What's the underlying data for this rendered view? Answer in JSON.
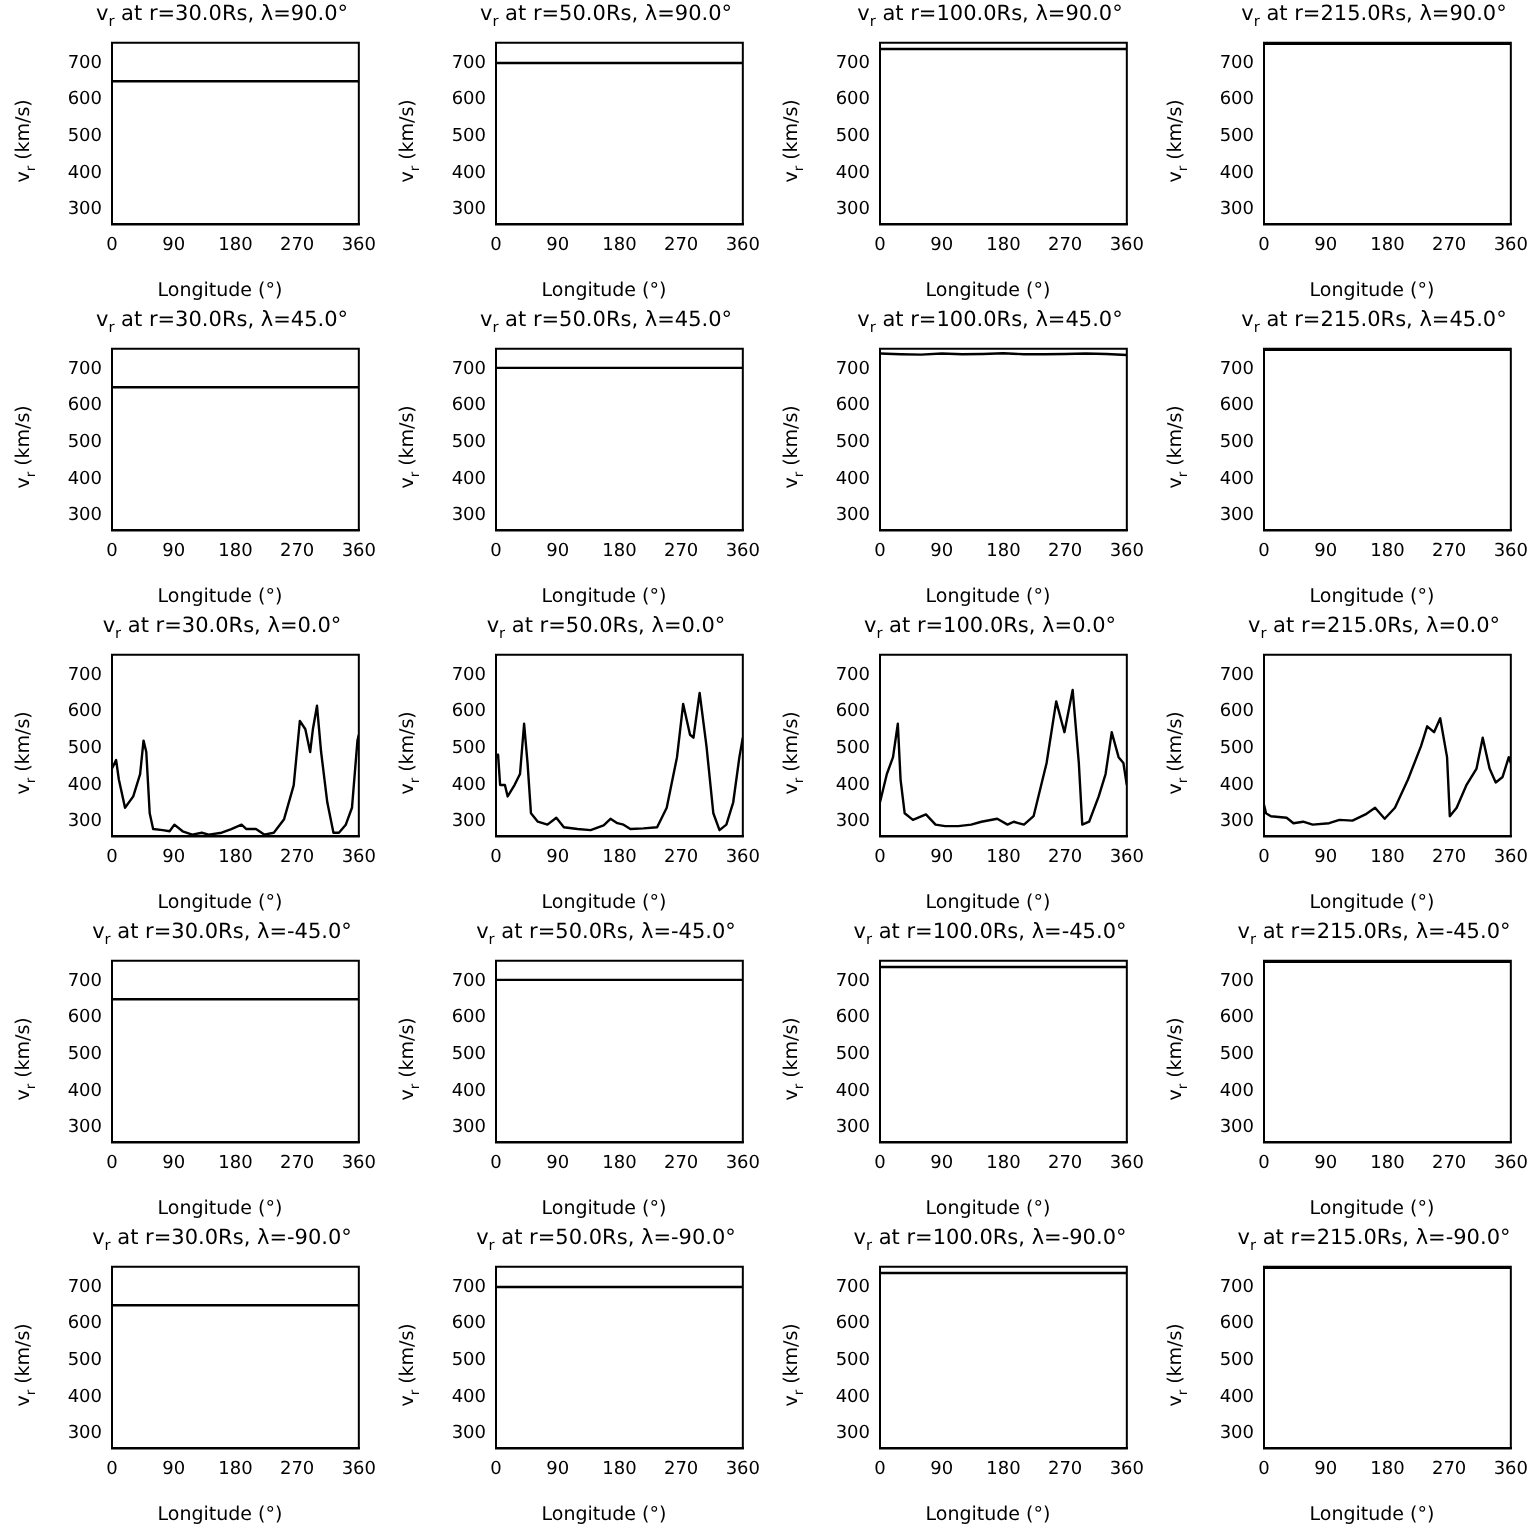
{
  "chart_data": [
    {
      "type": "line",
      "title": "v$_{r}$ at r=30.0Rs, λ=90.0°",
      "xlabel": "Longitude (°)",
      "ylabel": "v$_{r}$ (km/s)",
      "x": [
        0,
        360
      ],
      "values": [
        650,
        650
      ],
      "color": "#000000",
      "xlim": [
        0,
        360
      ],
      "ylim": [
        260,
        755
      ],
      "xticks": [
        0,
        90,
        180,
        270,
        360
      ],
      "yticks": [
        300,
        400,
        500,
        600,
        700
      ]
    },
    {
      "type": "line",
      "title": "v$_{r}$ at r=50.0Rs, λ=90.0°",
      "xlabel": "Longitude (°)",
      "ylabel": "v$_{r}$ (km/s)",
      "x": [
        0,
        360
      ],
      "values": [
        700,
        700
      ],
      "color": "#000000",
      "xlim": [
        0,
        360
      ],
      "ylim": [
        260,
        755
      ],
      "xticks": [
        0,
        90,
        180,
        270,
        360
      ],
      "yticks": [
        300,
        400,
        500,
        600,
        700
      ]
    },
    {
      "type": "line",
      "title": "v$_{r}$ at r=100.0Rs, λ=90.0°",
      "xlabel": "Longitude (°)",
      "ylabel": "v$_{r}$ (km/s)",
      "x": [
        0,
        360
      ],
      "values": [
        738,
        738
      ],
      "color": "#000000",
      "xlim": [
        0,
        360
      ],
      "ylim": [
        260,
        755
      ],
      "xticks": [
        0,
        90,
        180,
        270,
        360
      ],
      "yticks": [
        300,
        400,
        500,
        600,
        700
      ]
    },
    {
      "type": "line",
      "title": "v$_{r}$ at r=215.0Rs, λ=90.0°",
      "xlabel": "Longitude (°)",
      "ylabel": "v$_{r}$ (km/s)",
      "x": [
        0,
        360
      ],
      "values": [
        752,
        752
      ],
      "color": "#000000",
      "xlim": [
        0,
        360
      ],
      "ylim": [
        260,
        755
      ],
      "xticks": [
        0,
        90,
        180,
        270,
        360
      ],
      "yticks": [
        300,
        400,
        500,
        600,
        700
      ]
    },
    {
      "type": "line",
      "title": "v$_{r}$ at r=30.0Rs, λ=45.0°",
      "xlabel": "Longitude (°)",
      "ylabel": "v$_{r}$ (km/s)",
      "x": [
        0,
        360
      ],
      "values": [
        650,
        650
      ],
      "color": "#000000",
      "xlim": [
        0,
        360
      ],
      "ylim": [
        260,
        755
      ],
      "xticks": [
        0,
        90,
        180,
        270,
        360
      ],
      "yticks": [
        300,
        400,
        500,
        600,
        700
      ]
    },
    {
      "type": "line",
      "title": "v$_{r}$ at r=50.0Rs, λ=45.0°",
      "xlabel": "Longitude (°)",
      "ylabel": "v$_{r}$ (km/s)",
      "x": [
        0,
        360
      ],
      "values": [
        703,
        703
      ],
      "color": "#000000",
      "xlim": [
        0,
        360
      ],
      "ylim": [
        260,
        755
      ],
      "xticks": [
        0,
        90,
        180,
        270,
        360
      ],
      "yticks": [
        300,
        400,
        500,
        600,
        700
      ]
    },
    {
      "type": "line",
      "title": "v$_{r}$ at r=100.0Rs, λ=45.0°",
      "xlabel": "Longitude (°)",
      "ylabel": "v$_{r}$ (km/s)",
      "x": [
        0,
        30,
        60,
        90,
        120,
        150,
        180,
        210,
        240,
        270,
        300,
        330,
        360
      ],
      "values": [
        742,
        740,
        739,
        742,
        740,
        741,
        743,
        740,
        740,
        741,
        742,
        741,
        738
      ],
      "color": "#000000",
      "xlim": [
        0,
        360
      ],
      "ylim": [
        260,
        755
      ],
      "xticks": [
        0,
        90,
        180,
        270,
        360
      ],
      "yticks": [
        300,
        400,
        500,
        600,
        700
      ]
    },
    {
      "type": "line",
      "title": "v$_{r}$ at r=215.0Rs, λ=45.0°",
      "xlabel": "Longitude (°)",
      "ylabel": "v$_{r}$ (km/s)",
      "x": [
        0,
        360
      ],
      "values": [
        752,
        752
      ],
      "color": "#000000",
      "xlim": [
        0,
        360
      ],
      "ylim": [
        260,
        755
      ],
      "xticks": [
        0,
        90,
        180,
        270,
        360
      ],
      "yticks": [
        300,
        400,
        500,
        600,
        700
      ]
    },
    {
      "type": "line",
      "title": "v$_{r}$ at r=30.0Rs, λ=0.0°",
      "xlabel": "Longitude (°)",
      "ylabel": "v$_{r}$ (km/s)",
      "x": [
        0,
        6,
        10,
        19,
        31,
        41,
        46,
        50,
        55,
        60,
        74,
        84,
        91,
        103,
        117,
        131,
        141,
        160,
        174,
        189,
        196,
        210,
        222,
        236,
        251,
        265,
        274,
        282,
        289,
        293,
        299,
        305,
        314,
        323,
        331,
        341,
        350,
        358,
        360
      ],
      "values": [
        445,
        468,
        415,
        338,
        369,
        430,
        521,
        490,
        323,
        280,
        277,
        274,
        292,
        274,
        265,
        270,
        265,
        270,
        280,
        292,
        280,
        280,
        265,
        270,
        307,
        399,
        575,
        552,
        490,
        552,
        616,
        490,
        353,
        270,
        270,
        292,
        338,
        521,
        537
      ],
      "color": "#000000",
      "xlim": [
        0,
        360
      ],
      "ylim": [
        260,
        755
      ],
      "xticks": [
        0,
        90,
        180,
        270,
        360
      ],
      "yticks": [
        300,
        400,
        500,
        600,
        700
      ]
    },
    {
      "type": "line",
      "title": "v$_{r}$ at r=50.0Rs, λ=0.0°",
      "xlabel": "Longitude (°)",
      "ylabel": "v$_{r}$ (km/s)",
      "x": [
        0,
        3,
        6,
        13,
        17,
        27,
        35,
        41,
        46,
        51,
        61,
        75,
        88,
        99,
        119,
        138,
        157,
        167,
        177,
        186,
        196,
        215,
        235,
        249,
        264,
        273,
        283,
        288,
        297,
        307,
        317,
        326,
        336,
        346,
        355,
        360
      ],
      "values": [
        476,
        483,
        400,
        400,
        369,
        400,
        430,
        567,
        460,
        323,
        300,
        292,
        311,
        285,
        280,
        277,
        290,
        308,
        296,
        292,
        280,
        282,
        285,
        338,
        476,
        621,
        537,
        529,
        651,
        506,
        323,
        277,
        292,
        353,
        476,
        529
      ],
      "color": "#000000",
      "xlim": [
        0,
        360
      ],
      "ylim": [
        260,
        755
      ],
      "xticks": [
        0,
        90,
        180,
        270,
        360
      ],
      "yticks": [
        300,
        400,
        500,
        600,
        700
      ]
    },
    {
      "type": "line",
      "title": "v$_{r}$ at r=100.0Rs, λ=0.0°",
      "xlabel": "Longitude (°)",
      "ylabel": "v$_{r}$ (km/s)",
      "x": [
        0,
        10,
        19,
        26,
        30,
        36,
        48,
        67,
        81,
        95,
        114,
        133,
        148,
        171,
        186,
        195,
        210,
        224,
        243,
        257,
        269,
        281,
        290,
        295,
        305,
        319,
        329,
        338,
        348,
        355,
        360
      ],
      "values": [
        353,
        430,
        476,
        567,
        415,
        323,
        305,
        320,
        292,
        288,
        288,
        292,
        300,
        308,
        292,
        300,
        292,
        315,
        460,
        628,
        544,
        659,
        460,
        292,
        300,
        369,
        430,
        544,
        476,
        460,
        400
      ],
      "color": "#000000",
      "xlim": [
        0,
        360
      ],
      "ylim": [
        260,
        755
      ],
      "xticks": [
        0,
        90,
        180,
        270,
        360
      ],
      "yticks": [
        300,
        400,
        500,
        600,
        700
      ]
    },
    {
      "type": "line",
      "title": "v$_{r}$ at r=215.0Rs, λ=0.0°",
      "xlabel": "Longitude (°)",
      "ylabel": "v$_{r}$ (km/s)",
      "x": [
        0,
        3,
        10,
        33,
        43,
        57,
        71,
        95,
        110,
        129,
        148,
        162,
        176,
        191,
        210,
        229,
        238,
        248,
        257,
        267,
        271,
        281,
        295,
        310,
        319,
        329,
        338,
        348,
        357,
        360
      ],
      "values": [
        346,
        323,
        315,
        311,
        296,
        300,
        292,
        296,
        305,
        303,
        320,
        338,
        308,
        338,
        415,
        506,
        560,
        544,
        582,
        476,
        315,
        338,
        399,
        445,
        529,
        445,
        407,
        422,
        476,
        460
      ],
      "color": "#000000",
      "xlim": [
        0,
        360
      ],
      "ylim": [
        260,
        755
      ],
      "xticks": [
        0,
        90,
        180,
        270,
        360
      ],
      "yticks": [
        300,
        400,
        500,
        600,
        700
      ]
    },
    {
      "type": "line",
      "title": "v$_{r}$ at r=30.0Rs, λ=-45.0°",
      "xlabel": "Longitude (°)",
      "ylabel": "v$_{r}$ (km/s)",
      "x": [
        0,
        360
      ],
      "values": [
        650,
        650
      ],
      "color": "#000000",
      "xlim": [
        0,
        360
      ],
      "ylim": [
        260,
        755
      ],
      "xticks": [
        0,
        90,
        180,
        270,
        360
      ],
      "yticks": [
        300,
        400,
        500,
        600,
        700
      ]
    },
    {
      "type": "line",
      "title": "v$_{r}$ at r=50.0Rs, λ=-45.0°",
      "xlabel": "Longitude (°)",
      "ylabel": "v$_{r}$ (km/s)",
      "x": [
        0,
        360
      ],
      "values": [
        703,
        703
      ],
      "color": "#000000",
      "xlim": [
        0,
        360
      ],
      "ylim": [
        260,
        755
      ],
      "xticks": [
        0,
        90,
        180,
        270,
        360
      ],
      "yticks": [
        300,
        400,
        500,
        600,
        700
      ]
    },
    {
      "type": "line",
      "title": "v$_{r}$ at r=100.0Rs, λ=-45.0°",
      "xlabel": "Longitude (°)",
      "ylabel": "v$_{r}$ (km/s)",
      "x": [
        0,
        360
      ],
      "values": [
        738,
        738
      ],
      "color": "#000000",
      "xlim": [
        0,
        360
      ],
      "ylim": [
        260,
        755
      ],
      "xticks": [
        0,
        90,
        180,
        270,
        360
      ],
      "yticks": [
        300,
        400,
        500,
        600,
        700
      ]
    },
    {
      "type": "line",
      "title": "v$_{r}$ at r=215.0Rs, λ=-45.0°",
      "xlabel": "Longitude (°)",
      "ylabel": "v$_{r}$ (km/s)",
      "x": [
        0,
        360
      ],
      "values": [
        752,
        752
      ],
      "color": "#000000",
      "xlim": [
        0,
        360
      ],
      "ylim": [
        260,
        755
      ],
      "xticks": [
        0,
        90,
        180,
        270,
        360
      ],
      "yticks": [
        300,
        400,
        500,
        600,
        700
      ]
    },
    {
      "type": "line",
      "title": "v$_{r}$ at r=30.0Rs, λ=-90.0°",
      "xlabel": "Longitude (°)",
      "ylabel": "v$_{r}$ (km/s)",
      "x": [
        0,
        360
      ],
      "values": [
        650,
        650
      ],
      "color": "#000000",
      "xlim": [
        0,
        360
      ],
      "ylim": [
        260,
        755
      ],
      "xticks": [
        0,
        90,
        180,
        270,
        360
      ],
      "yticks": [
        300,
        400,
        500,
        600,
        700
      ]
    },
    {
      "type": "line",
      "title": "v$_{r}$ at r=50.0Rs, λ=-90.0°",
      "xlabel": "Longitude (°)",
      "ylabel": "v$_{r}$ (km/s)",
      "x": [
        0,
        360
      ],
      "values": [
        700,
        700
      ],
      "color": "#000000",
      "xlim": [
        0,
        360
      ],
      "ylim": [
        260,
        755
      ],
      "xticks": [
        0,
        90,
        180,
        270,
        360
      ],
      "yticks": [
        300,
        400,
        500,
        600,
        700
      ]
    },
    {
      "type": "line",
      "title": "v$_{r}$ at r=100.0Rs, λ=-90.0°",
      "xlabel": "Longitude (°)",
      "ylabel": "v$_{r}$ (km/s)",
      "x": [
        0,
        360
      ],
      "values": [
        738,
        738
      ],
      "color": "#000000",
      "xlim": [
        0,
        360
      ],
      "ylim": [
        260,
        755
      ],
      "xticks": [
        0,
        90,
        180,
        270,
        360
      ],
      "yticks": [
        300,
        400,
        500,
        600,
        700
      ]
    },
    {
      "type": "line",
      "title": "v$_{r}$ at r=215.0Rs, λ=-90.0°",
      "xlabel": "Longitude (°)",
      "ylabel": "v$_{r}$ (km/s)",
      "x": [
        0,
        360
      ],
      "values": [
        752,
        752
      ],
      "color": "#000000",
      "xlim": [
        0,
        360
      ],
      "ylim": [
        260,
        755
      ],
      "xticks": [
        0,
        90,
        180,
        270,
        360
      ],
      "yticks": [
        300,
        400,
        500,
        600,
        700
      ]
    }
  ]
}
